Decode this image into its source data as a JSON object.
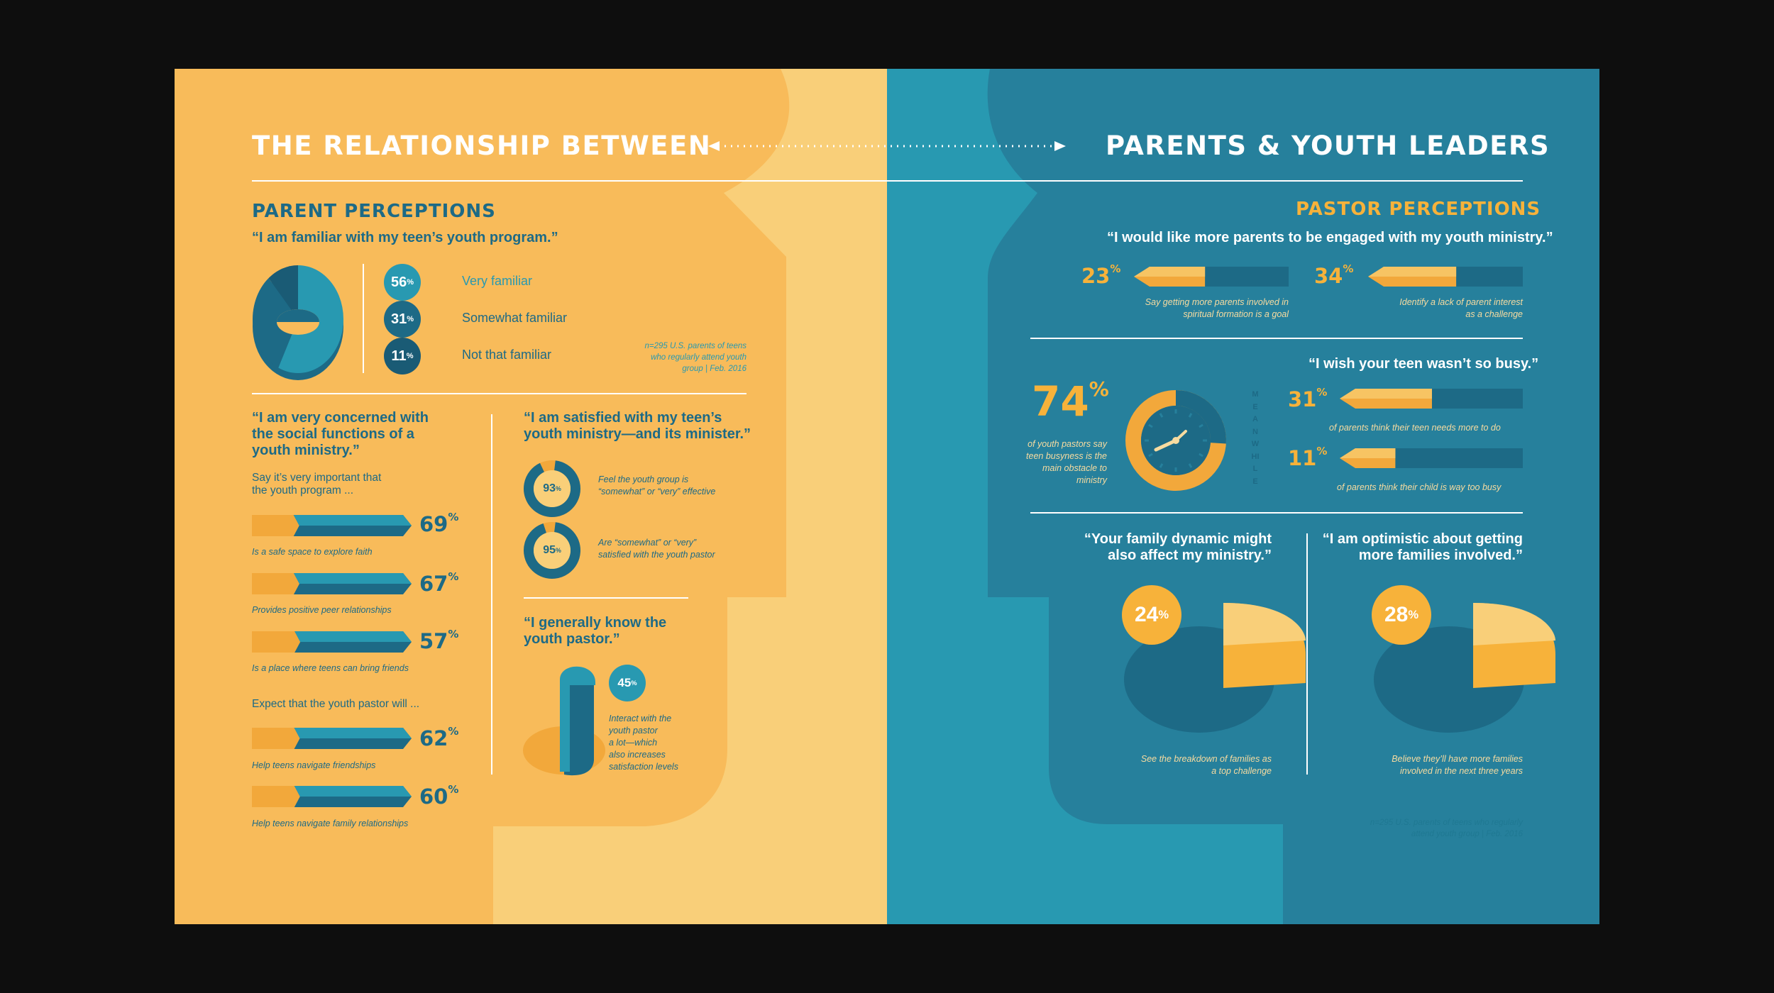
{
  "colors": {
    "yellow": "#f8bb5a",
    "light_yellow": "#f9cf79",
    "orange": "#f2a83b",
    "teal": "#2899b1",
    "dark_teal": "#1d6a86",
    "mid_teal": "#26809c"
  },
  "header": {
    "left": "THE RELATIONSHIP BETWEEN",
    "right": "PARENTS & YOUTH LEADERS"
  },
  "parent": {
    "title": "PARENT PERCEPTIONS",
    "familiar": {
      "quote": "“I am familiar with my teen’s youth program.”",
      "items": [
        {
          "label": "Very familiar",
          "value": "56",
          "unit": "%"
        },
        {
          "label": "Somewhat familiar",
          "value": "31",
          "unit": "%"
        },
        {
          "label": "Not that familiar",
          "value": "11",
          "unit": "%"
        }
      ],
      "source": [
        "n=295 U.S. parents of teens",
        "who regularly attend youth",
        "group | Feb. 2016"
      ]
    },
    "concerned": {
      "quote": [
        "“I am very concerned with",
        "the social functions of a",
        "youth ministry.”"
      ],
      "sub1": [
        "Say it’s very important that",
        "the youth program ..."
      ],
      "sub2": "Expect that the youth pastor will ...",
      "bars": [
        {
          "value": "69",
          "unit": "%",
          "caption": "Is a safe space to explore faith"
        },
        {
          "value": "67",
          "unit": "%",
          "caption": "Provides positive peer relationships"
        },
        {
          "value": "57",
          "unit": "%",
          "caption": "Is a place where teens can bring friends"
        },
        {
          "value": "62",
          "unit": "%",
          "caption": "Help teens navigate friendships"
        },
        {
          "value": "60",
          "unit": "%",
          "caption": "Help teens navigate family relationships"
        }
      ]
    },
    "satisfied": {
      "quote": [
        "“I am satisfied with my teen’s",
        "youth ministry—and its minister.”"
      ],
      "items": [
        {
          "value": "93",
          "unit": "%",
          "caption": [
            "Feel the youth group is",
            "“somewhat” or “very” effective"
          ]
        },
        {
          "value": "95",
          "unit": "%",
          "caption": [
            "Are “somewhat” or “very”",
            "satisfied with the youth pastor"
          ]
        }
      ]
    },
    "know": {
      "quote": [
        "“I generally know the",
        "youth pastor.”"
      ],
      "value": "45",
      "unit": "%",
      "caption": [
        "Interact with the",
        "youth pastor",
        "a lot—which",
        "also increases",
        "satisfaction levels"
      ]
    }
  },
  "pastor": {
    "title": "PASTOR PERCEPTIONS",
    "engaged": {
      "quote": "“I would like more parents to be engaged with my youth ministry.”",
      "items": [
        {
          "value": "23",
          "unit": "%",
          "caption": [
            "Say getting more parents involved in",
            "spiritual formation is a goal"
          ]
        },
        {
          "value": "34",
          "unit": "%",
          "caption": [
            "Identify a lack of parent interest",
            "as a challenge"
          ]
        }
      ]
    },
    "busy": {
      "big_value": "74",
      "big_unit": "%",
      "big_caption": [
        "of youth pastors say",
        "teen busyness is the",
        "main obstacle to",
        "ministry"
      ],
      "meanwhile": "MEANWHILE",
      "quote": "“I wish your teen wasn’t so busy.”",
      "items": [
        {
          "value": "31",
          "unit": "%",
          "caption": "of parents think their teen needs more to do"
        },
        {
          "value": "11",
          "unit": "%",
          "caption": "of parents think their child is way too busy"
        }
      ]
    },
    "dynamic": {
      "quote": [
        "“Your family dynamic might",
        "also affect my ministry.”"
      ],
      "value": "24",
      "unit": "%",
      "caption": [
        "See the breakdown of families as",
        "a top challenge"
      ]
    },
    "optimistic": {
      "quote": [
        "“I am optimistic about getting",
        "more families involved.”"
      ],
      "value": "28",
      "unit": "%",
      "caption": [
        "Believe they’ll have more families",
        "involved in the next three years"
      ]
    },
    "source": [
      "n=295 U.S. parents of teens who regularly",
      "attend youth group | Feb. 2016"
    ]
  },
  "chart_data": [
    {
      "type": "pie",
      "title": "“I am familiar with my teen’s youth program.”",
      "categories": [
        "Very familiar",
        "Somewhat familiar",
        "Not that familiar"
      ],
      "values": [
        56,
        31,
        11
      ]
    },
    {
      "type": "bar",
      "title": "“I am very concerned with the social functions of a youth ministry.”",
      "categories": [
        "Is a safe space to explore faith",
        "Provides positive peer relationships",
        "Is a place where teens can bring friends",
        "Help teens navigate friendships",
        "Help teens navigate family relationships"
      ],
      "values": [
        69,
        67,
        57,
        62,
        60
      ]
    },
    {
      "type": "pie",
      "title": "“I am satisfied with my teen’s youth ministry—and its minister.”",
      "categories": [
        "Feel the youth group is “somewhat” or “very” effective",
        "Are “somewhat” or “very” satisfied with the youth pastor"
      ],
      "values": [
        93,
        95
      ]
    },
    {
      "type": "pie",
      "title": "“I generally know the youth pastor.”",
      "categories": [
        "Interact with the youth pastor a lot"
      ],
      "values": [
        45
      ]
    },
    {
      "type": "bar",
      "title": "“I would like more parents to be engaged with my youth ministry.”",
      "categories": [
        "Say getting more parents involved in spiritual formation is a goal",
        "Identify a lack of parent interest as a challenge"
      ],
      "values": [
        23,
        34
      ]
    },
    {
      "type": "pie",
      "categories": [
        "of youth pastors say teen busyness is the main obstacle to ministry"
      ],
      "values": [
        74
      ]
    },
    {
      "type": "bar",
      "title": "“I wish your teen wasn’t so busy.”",
      "categories": [
        "of parents think their teen needs more to do",
        "of parents think their child is way too busy"
      ],
      "values": [
        31,
        11
      ]
    },
    {
      "type": "pie",
      "title": "“Your family dynamic might also affect my ministry.”",
      "categories": [
        "See the breakdown of families as a top challenge"
      ],
      "values": [
        24
      ]
    },
    {
      "type": "pie",
      "title": "“I am optimistic about getting more families involved.”",
      "categories": [
        "Believe they’ll have more families involved in the next three years"
      ],
      "values": [
        28
      ]
    }
  ]
}
